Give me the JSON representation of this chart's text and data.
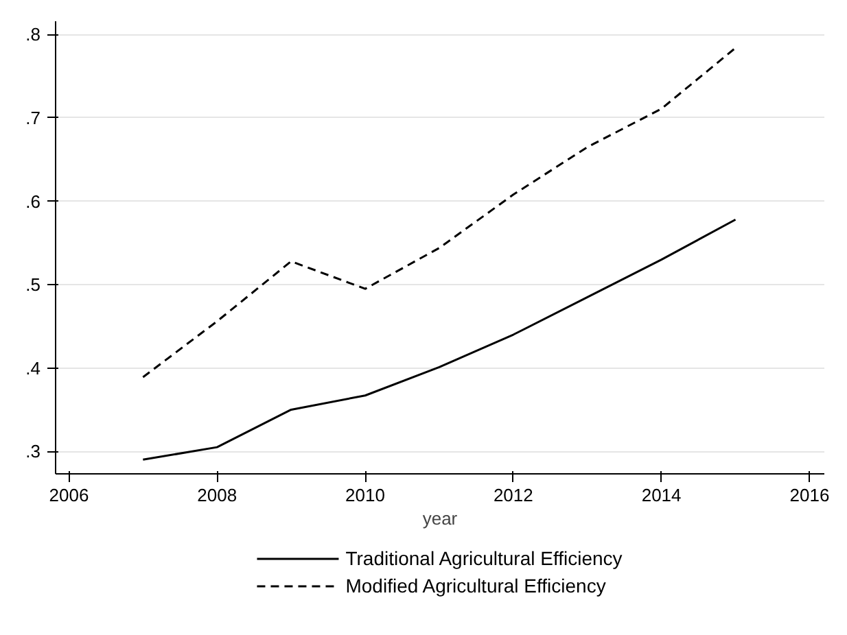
{
  "chart_data": {
    "type": "line",
    "xlabel": "year",
    "x": [
      2007,
      2008,
      2009,
      2010,
      2011,
      2012,
      2013,
      2014,
      2015
    ],
    "series": [
      {
        "name": "Traditional Agricultural Efficiency",
        "color": "#000000",
        "line_style": "solid",
        "values": [
          0.29,
          0.305,
          0.35,
          0.367,
          0.401,
          0.44,
          0.485,
          0.53,
          0.578
        ]
      },
      {
        "name": "Modified Agricultural Efficiency",
        "color": "#000000",
        "line_style": "dashed",
        "values": [
          0.389,
          0.456,
          0.528,
          0.495,
          0.544,
          0.608,
          0.665,
          0.711,
          0.784
        ]
      }
    ],
    "xlim": [
      2005.82,
      2016.2
    ],
    "xticks": [
      2006,
      2008,
      2010,
      2012,
      2014,
      2016
    ],
    "ylim": [
      0.273,
      0.816
    ],
    "yticks": [
      {
        "value": 0.3,
        "label": ".3"
      },
      {
        "value": 0.4,
        "label": ".4"
      },
      {
        "value": 0.5,
        "label": ".5"
      },
      {
        "value": 0.6,
        "label": ".6"
      },
      {
        "value": 0.7,
        "label": ".7"
      },
      {
        "value": 0.8,
        "label": ".8"
      }
    ],
    "grid": "y",
    "legend": "bottom"
  }
}
